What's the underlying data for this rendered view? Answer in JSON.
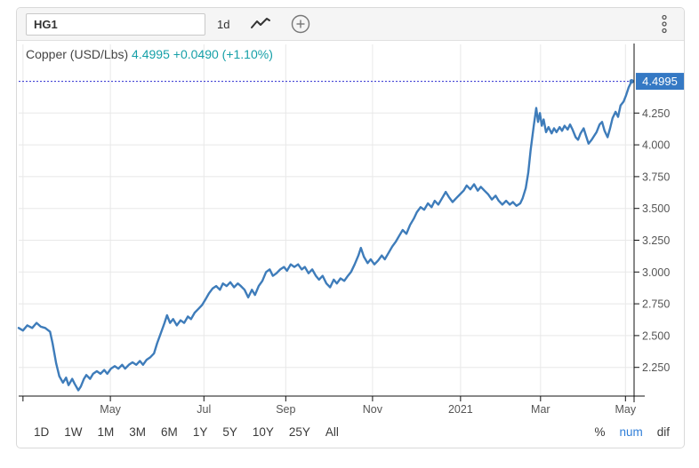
{
  "toolbar": {
    "symbol": "HG1",
    "interval": "1d",
    "icons": [
      "sparkline-icon",
      "plus-circle-icon",
      "kebab-menu-icon"
    ]
  },
  "chart": {
    "title_label": "Copper (USD/Lbs)",
    "price": "4.4995",
    "change": "+0.0490",
    "change_pct": "(+1.10%)",
    "badge": "4.4995"
  },
  "chart_data": {
    "type": "line",
    "title": "Copper (USD/Lbs)",
    "xlabel": "",
    "ylabel": "USD/Lbs",
    "ylim": [
      2.05,
      4.55
    ],
    "grid": true,
    "legend_position": "none",
    "current_value": 4.4995,
    "x_ticks": [
      {
        "f": 0.007,
        "label": ""
      },
      {
        "f": 0.149,
        "label": "May"
      },
      {
        "f": 0.301,
        "label": "Jul"
      },
      {
        "f": 0.434,
        "label": "Sep"
      },
      {
        "f": 0.575,
        "label": "Nov"
      },
      {
        "f": 0.718,
        "label": "2021"
      },
      {
        "f": 0.848,
        "label": "Mar"
      },
      {
        "f": 0.986,
        "label": "May"
      }
    ],
    "y_ticks": [
      {
        "v": 2.25,
        "label": "2.250"
      },
      {
        "v": 2.5,
        "label": "2.500"
      },
      {
        "v": 2.75,
        "label": "2.750"
      },
      {
        "v": 3.0,
        "label": "3.000"
      },
      {
        "v": 3.25,
        "label": "3.250"
      },
      {
        "v": 3.5,
        "label": "3.500"
      },
      {
        "v": 3.75,
        "label": "3.750"
      },
      {
        "v": 4.0,
        "label": "4.000"
      },
      {
        "v": 4.25,
        "label": "4.250"
      }
    ],
    "series": [
      {
        "name": "Copper (USD/Lbs)",
        "points": [
          [
            0.0,
            2.56
          ],
          [
            0.007,
            2.54
          ],
          [
            0.014,
            2.58
          ],
          [
            0.022,
            2.56
          ],
          [
            0.029,
            2.6
          ],
          [
            0.036,
            2.57
          ],
          [
            0.043,
            2.56
          ],
          [
            0.051,
            2.53
          ],
          [
            0.055,
            2.44
          ],
          [
            0.061,
            2.28
          ],
          [
            0.066,
            2.18
          ],
          [
            0.072,
            2.13
          ],
          [
            0.077,
            2.17
          ],
          [
            0.081,
            2.11
          ],
          [
            0.087,
            2.16
          ],
          [
            0.091,
            2.12
          ],
          [
            0.097,
            2.07
          ],
          [
            0.101,
            2.1
          ],
          [
            0.106,
            2.16
          ],
          [
            0.11,
            2.19
          ],
          [
            0.116,
            2.16
          ],
          [
            0.121,
            2.2
          ],
          [
            0.127,
            2.22
          ],
          [
            0.133,
            2.2
          ],
          [
            0.139,
            2.23
          ],
          [
            0.144,
            2.2
          ],
          [
            0.15,
            2.24
          ],
          [
            0.156,
            2.26
          ],
          [
            0.162,
            2.24
          ],
          [
            0.168,
            2.27
          ],
          [
            0.173,
            2.24
          ],
          [
            0.179,
            2.27
          ],
          [
            0.185,
            2.29
          ],
          [
            0.191,
            2.27
          ],
          [
            0.197,
            2.3
          ],
          [
            0.202,
            2.27
          ],
          [
            0.208,
            2.31
          ],
          [
            0.214,
            2.33
          ],
          [
            0.22,
            2.36
          ],
          [
            0.225,
            2.44
          ],
          [
            0.231,
            2.52
          ],
          [
            0.237,
            2.6
          ],
          [
            0.241,
            2.66
          ],
          [
            0.246,
            2.6
          ],
          [
            0.251,
            2.63
          ],
          [
            0.257,
            2.58
          ],
          [
            0.263,
            2.62
          ],
          [
            0.269,
            2.6
          ],
          [
            0.275,
            2.65
          ],
          [
            0.28,
            2.63
          ],
          [
            0.286,
            2.68
          ],
          [
            0.292,
            2.71
          ],
          [
            0.298,
            2.74
          ],
          [
            0.303,
            2.78
          ],
          [
            0.309,
            2.83
          ],
          [
            0.315,
            2.87
          ],
          [
            0.321,
            2.89
          ],
          [
            0.327,
            2.86
          ],
          [
            0.332,
            2.91
          ],
          [
            0.338,
            2.89
          ],
          [
            0.344,
            2.92
          ],
          [
            0.35,
            2.88
          ],
          [
            0.356,
            2.91
          ],
          [
            0.361,
            2.89
          ],
          [
            0.367,
            2.86
          ],
          [
            0.373,
            2.8
          ],
          [
            0.379,
            2.86
          ],
          [
            0.384,
            2.82
          ],
          [
            0.39,
            2.89
          ],
          [
            0.396,
            2.93
          ],
          [
            0.402,
            3.0
          ],
          [
            0.408,
            3.02
          ],
          [
            0.413,
            2.97
          ],
          [
            0.419,
            2.99
          ],
          [
            0.425,
            3.02
          ],
          [
            0.431,
            3.04
          ],
          [
            0.436,
            3.01
          ],
          [
            0.442,
            3.06
          ],
          [
            0.448,
            3.04
          ],
          [
            0.454,
            3.06
          ],
          [
            0.46,
            3.02
          ],
          [
            0.465,
            3.04
          ],
          [
            0.471,
            2.99
          ],
          [
            0.477,
            3.02
          ],
          [
            0.483,
            2.97
          ],
          [
            0.488,
            2.94
          ],
          [
            0.494,
            2.97
          ],
          [
            0.5,
            2.91
          ],
          [
            0.506,
            2.88
          ],
          [
            0.512,
            2.94
          ],
          [
            0.517,
            2.91
          ],
          [
            0.523,
            2.95
          ],
          [
            0.529,
            2.93
          ],
          [
            0.535,
            2.97
          ],
          [
            0.54,
            3.0
          ],
          [
            0.546,
            3.06
          ],
          [
            0.552,
            3.13
          ],
          [
            0.556,
            3.19
          ],
          [
            0.561,
            3.12
          ],
          [
            0.567,
            3.07
          ],
          [
            0.572,
            3.1
          ],
          [
            0.578,
            3.06
          ],
          [
            0.584,
            3.09
          ],
          [
            0.59,
            3.13
          ],
          [
            0.595,
            3.1
          ],
          [
            0.601,
            3.15
          ],
          [
            0.607,
            3.2
          ],
          [
            0.613,
            3.24
          ],
          [
            0.619,
            3.29
          ],
          [
            0.624,
            3.33
          ],
          [
            0.63,
            3.3
          ],
          [
            0.636,
            3.37
          ],
          [
            0.642,
            3.42
          ],
          [
            0.647,
            3.47
          ],
          [
            0.653,
            3.51
          ],
          [
            0.659,
            3.49
          ],
          [
            0.665,
            3.54
          ],
          [
            0.671,
            3.51
          ],
          [
            0.676,
            3.56
          ],
          [
            0.682,
            3.53
          ],
          [
            0.688,
            3.58
          ],
          [
            0.694,
            3.63
          ],
          [
            0.699,
            3.59
          ],
          [
            0.705,
            3.55
          ],
          [
            0.711,
            3.58
          ],
          [
            0.717,
            3.61
          ],
          [
            0.723,
            3.64
          ],
          [
            0.728,
            3.68
          ],
          [
            0.734,
            3.65
          ],
          [
            0.74,
            3.69
          ],
          [
            0.746,
            3.64
          ],
          [
            0.751,
            3.67
          ],
          [
            0.757,
            3.64
          ],
          [
            0.763,
            3.61
          ],
          [
            0.769,
            3.57
          ],
          [
            0.775,
            3.6
          ],
          [
            0.78,
            3.56
          ],
          [
            0.786,
            3.53
          ],
          [
            0.792,
            3.56
          ],
          [
            0.798,
            3.53
          ],
          [
            0.803,
            3.55
          ],
          [
            0.809,
            3.52
          ],
          [
            0.815,
            3.54
          ],
          [
            0.819,
            3.58
          ],
          [
            0.824,
            3.66
          ],
          [
            0.828,
            3.78
          ],
          [
            0.832,
            3.96
          ],
          [
            0.837,
            4.15
          ],
          [
            0.841,
            4.29
          ],
          [
            0.844,
            4.18
          ],
          [
            0.847,
            4.25
          ],
          [
            0.85,
            4.15
          ],
          [
            0.853,
            4.2
          ],
          [
            0.857,
            4.1
          ],
          [
            0.861,
            4.14
          ],
          [
            0.866,
            4.09
          ],
          [
            0.87,
            4.13
          ],
          [
            0.874,
            4.1
          ],
          [
            0.879,
            4.14
          ],
          [
            0.883,
            4.11
          ],
          [
            0.887,
            4.15
          ],
          [
            0.892,
            4.12
          ],
          [
            0.896,
            4.16
          ],
          [
            0.9,
            4.12
          ],
          [
            0.905,
            4.06
          ],
          [
            0.909,
            4.04
          ],
          [
            0.913,
            4.09
          ],
          [
            0.918,
            4.13
          ],
          [
            0.922,
            4.07
          ],
          [
            0.926,
            4.01
          ],
          [
            0.931,
            4.04
          ],
          [
            0.935,
            4.07
          ],
          [
            0.939,
            4.1
          ],
          [
            0.944,
            4.16
          ],
          [
            0.948,
            4.18
          ],
          [
            0.952,
            4.11
          ],
          [
            0.957,
            4.06
          ],
          [
            0.961,
            4.13
          ],
          [
            0.965,
            4.21
          ],
          [
            0.97,
            4.26
          ],
          [
            0.974,
            4.22
          ],
          [
            0.978,
            4.31
          ],
          [
            0.983,
            4.34
          ],
          [
            0.987,
            4.39
          ],
          [
            0.991,
            4.45
          ],
          [
            0.996,
            4.4995
          ]
        ]
      }
    ]
  },
  "timeframes": [
    "1D",
    "1W",
    "1M",
    "3M",
    "6M",
    "1Y",
    "5Y",
    "10Y",
    "25Y",
    "All"
  ],
  "modes": [
    "%",
    "num",
    "dif"
  ],
  "selected_mode": "num",
  "colors": {
    "line_blue": "#3e7cba",
    "badge_blue": "#3579c4",
    "dotted_blue": "#2b2bd0",
    "teal": "#16a0a8",
    "grid": "#e8e8e8",
    "axis": "#111111",
    "tick_label": "#555555",
    "link_blue": "#2f7ed8"
  }
}
